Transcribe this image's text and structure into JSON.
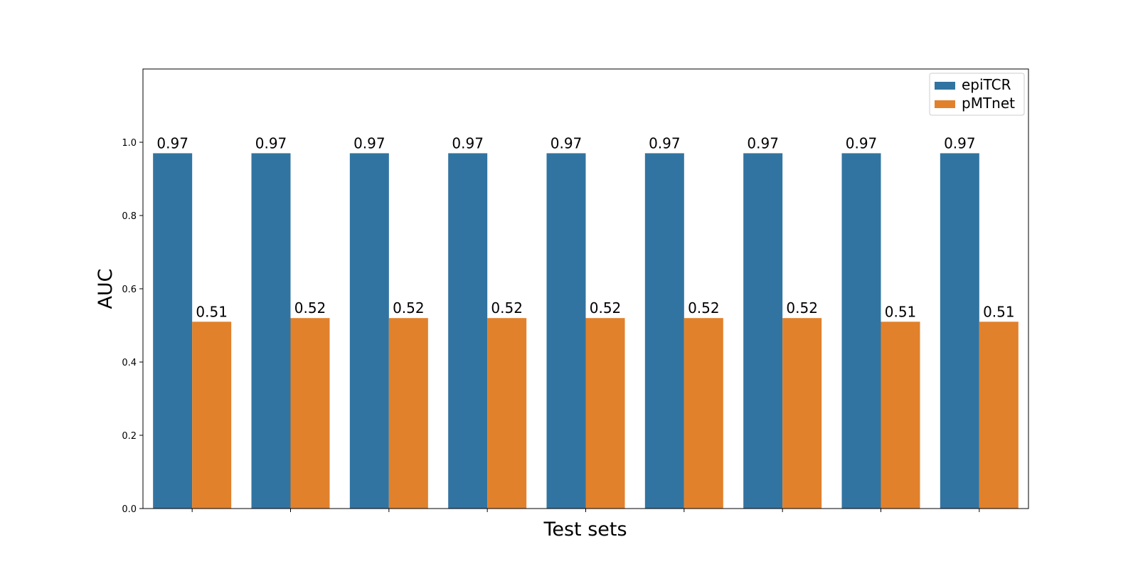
{
  "chart_data": {
    "type": "bar",
    "title": "",
    "xlabel": "Test sets",
    "ylabel": "AUC",
    "ylim": [
      0,
      1.2
    ],
    "yticks": [
      0.0,
      0.2,
      0.4,
      0.6,
      0.8,
      1.0
    ],
    "ytick_labels": [
      "0.0",
      "0.2",
      "0.4",
      "0.6",
      "0.8",
      "1.0"
    ],
    "categories": [
      "",
      "",
      "",
      "",
      "",
      "",
      "",
      "",
      ""
    ],
    "series": [
      {
        "name": "epiTCR",
        "color": "#3274a1",
        "values": [
          0.97,
          0.97,
          0.97,
          0.97,
          0.97,
          0.97,
          0.97,
          0.97,
          0.97
        ],
        "labels": [
          "0.97",
          "0.97",
          "0.97",
          "0.97",
          "0.97",
          "0.97",
          "0.97",
          "0.97",
          "0.97"
        ]
      },
      {
        "name": "pMTnet",
        "color": "#e1812c",
        "values": [
          0.51,
          0.52,
          0.52,
          0.52,
          0.52,
          0.52,
          0.52,
          0.51,
          0.51
        ],
        "labels": [
          "0.51",
          "0.52",
          "0.52",
          "0.52",
          "0.52",
          "0.52",
          "0.52",
          "0.51",
          "0.51"
        ]
      }
    ],
    "grid": false,
    "legend": "top-right"
  }
}
